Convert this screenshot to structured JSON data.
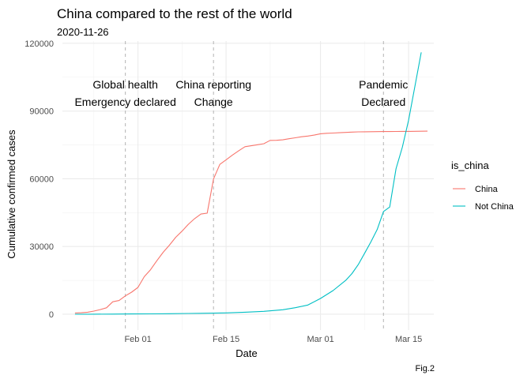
{
  "chart_data": {
    "type": "line",
    "title": "China compared to the rest of the world",
    "subtitle": "2020-11-26",
    "xlabel": "Date",
    "ylabel": "Cumulative confirmed cases",
    "caption": "Fig.2",
    "xlim": [
      "2020-01-20",
      "2020-03-19"
    ],
    "ylim": [
      -7000,
      121000
    ],
    "x_ticks": [
      {
        "date": "2020-02-01",
        "label": "Feb 01"
      },
      {
        "date": "2020-02-15",
        "label": "Feb 15"
      },
      {
        "date": "2020-03-01",
        "label": "Mar 01"
      },
      {
        "date": "2020-03-15",
        "label": "Mar 15"
      }
    ],
    "x_minor_ticks": [
      "2020-01-25",
      "2020-02-08",
      "2020-02-22",
      "2020-03-08"
    ],
    "y_ticks": [
      {
        "value": 0,
        "label": "0"
      },
      {
        "value": 30000,
        "label": "30000"
      },
      {
        "value": 60000,
        "label": "60000"
      },
      {
        "value": 90000,
        "label": "90000"
      },
      {
        "value": 120000,
        "label": "120000"
      }
    ],
    "y_minor_ticks": [
      15000,
      45000,
      75000,
      105000
    ],
    "grid": true,
    "legend": {
      "title": "is_china",
      "placement": "right"
    },
    "series": [
      {
        "name": "China",
        "color": "#F8766D",
        "points": [
          [
            "2020-01-22",
            548
          ],
          [
            "2020-01-23",
            643
          ],
          [
            "2020-01-24",
            920
          ],
          [
            "2020-01-25",
            1406
          ],
          [
            "2020-01-26",
            2075
          ],
          [
            "2020-01-27",
            2877
          ],
          [
            "2020-01-28",
            5509
          ],
          [
            "2020-01-29",
            6087
          ],
          [
            "2020-01-30",
            8141
          ],
          [
            "2020-01-31",
            9802
          ],
          [
            "2020-02-01",
            11891
          ],
          [
            "2020-02-02",
            16630
          ],
          [
            "2020-02-03",
            19716
          ],
          [
            "2020-02-04",
            23707
          ],
          [
            "2020-02-05",
            27440
          ],
          [
            "2020-02-06",
            30587
          ],
          [
            "2020-02-07",
            34110
          ],
          [
            "2020-02-08",
            36814
          ],
          [
            "2020-02-09",
            39829
          ],
          [
            "2020-02-10",
            42354
          ],
          [
            "2020-02-11",
            44386
          ],
          [
            "2020-02-12",
            44759
          ],
          [
            "2020-02-13",
            59895
          ],
          [
            "2020-02-14",
            66358
          ],
          [
            "2020-02-15",
            68413
          ],
          [
            "2020-02-16",
            70513
          ],
          [
            "2020-02-17",
            72434
          ],
          [
            "2020-02-18",
            74211
          ],
          [
            "2020-02-19",
            74619
          ],
          [
            "2020-02-20",
            75077
          ],
          [
            "2020-02-21",
            75550
          ],
          [
            "2020-02-22",
            77001
          ],
          [
            "2020-02-23",
            77022
          ],
          [
            "2020-02-24",
            77241
          ],
          [
            "2020-02-25",
            77754
          ],
          [
            "2020-02-26",
            78166
          ],
          [
            "2020-02-27",
            78600
          ],
          [
            "2020-02-28",
            78928
          ],
          [
            "2020-02-29",
            79356
          ],
          [
            "2020-03-01",
            79932
          ],
          [
            "2020-03-02",
            80136
          ],
          [
            "2020-03-03",
            80261
          ],
          [
            "2020-03-04",
            80386
          ],
          [
            "2020-03-05",
            80537
          ],
          [
            "2020-03-06",
            80690
          ],
          [
            "2020-03-07",
            80770
          ],
          [
            "2020-03-08",
            80823
          ],
          [
            "2020-03-09",
            80860
          ],
          [
            "2020-03-10",
            80887
          ],
          [
            "2020-03-11",
            80921
          ],
          [
            "2020-03-12",
            80932
          ],
          [
            "2020-03-13",
            80945
          ],
          [
            "2020-03-14",
            80977
          ],
          [
            "2020-03-15",
            81003
          ],
          [
            "2020-03-16",
            81033
          ],
          [
            "2020-03-17",
            81058
          ],
          [
            "2020-03-18",
            81102
          ]
        ]
      },
      {
        "name": "Not China",
        "color": "#00BFC4",
        "points": [
          [
            "2020-01-22",
            7
          ],
          [
            "2020-01-25",
            30
          ],
          [
            "2020-01-28",
            70
          ],
          [
            "2020-01-31",
            140
          ],
          [
            "2020-02-03",
            180
          ],
          [
            "2020-02-06",
            250
          ],
          [
            "2020-02-09",
            350
          ],
          [
            "2020-02-12",
            450
          ],
          [
            "2020-02-15",
            600
          ],
          [
            "2020-02-18",
            900
          ],
          [
            "2020-02-21",
            1300
          ],
          [
            "2020-02-24",
            2000
          ],
          [
            "2020-02-26",
            2900
          ],
          [
            "2020-02-28",
            4100
          ],
          [
            "2020-03-01",
            7000
          ],
          [
            "2020-03-03",
            10500
          ],
          [
            "2020-03-05",
            15000
          ],
          [
            "2020-03-06",
            18000
          ],
          [
            "2020-03-07",
            22000
          ],
          [
            "2020-03-08",
            27000
          ],
          [
            "2020-03-09",
            32000
          ],
          [
            "2020-03-10",
            37500
          ],
          [
            "2020-03-11",
            45500
          ],
          [
            "2020-03-12",
            47500
          ],
          [
            "2020-03-13",
            64500
          ],
          [
            "2020-03-14",
            74000
          ],
          [
            "2020-03-15",
            86000
          ],
          [
            "2020-03-16",
            101000
          ],
          [
            "2020-03-17",
            116000
          ]
        ]
      }
    ],
    "annotations": [
      {
        "date": "2020-01-30",
        "lines": [
          "Global health",
          "Emergency declared"
        ]
      },
      {
        "date": "2020-02-13",
        "lines": [
          "China reporting",
          "Change"
        ]
      },
      {
        "date": "2020-03-11",
        "lines": [
          "Pandemic",
          "Declared"
        ]
      }
    ]
  }
}
